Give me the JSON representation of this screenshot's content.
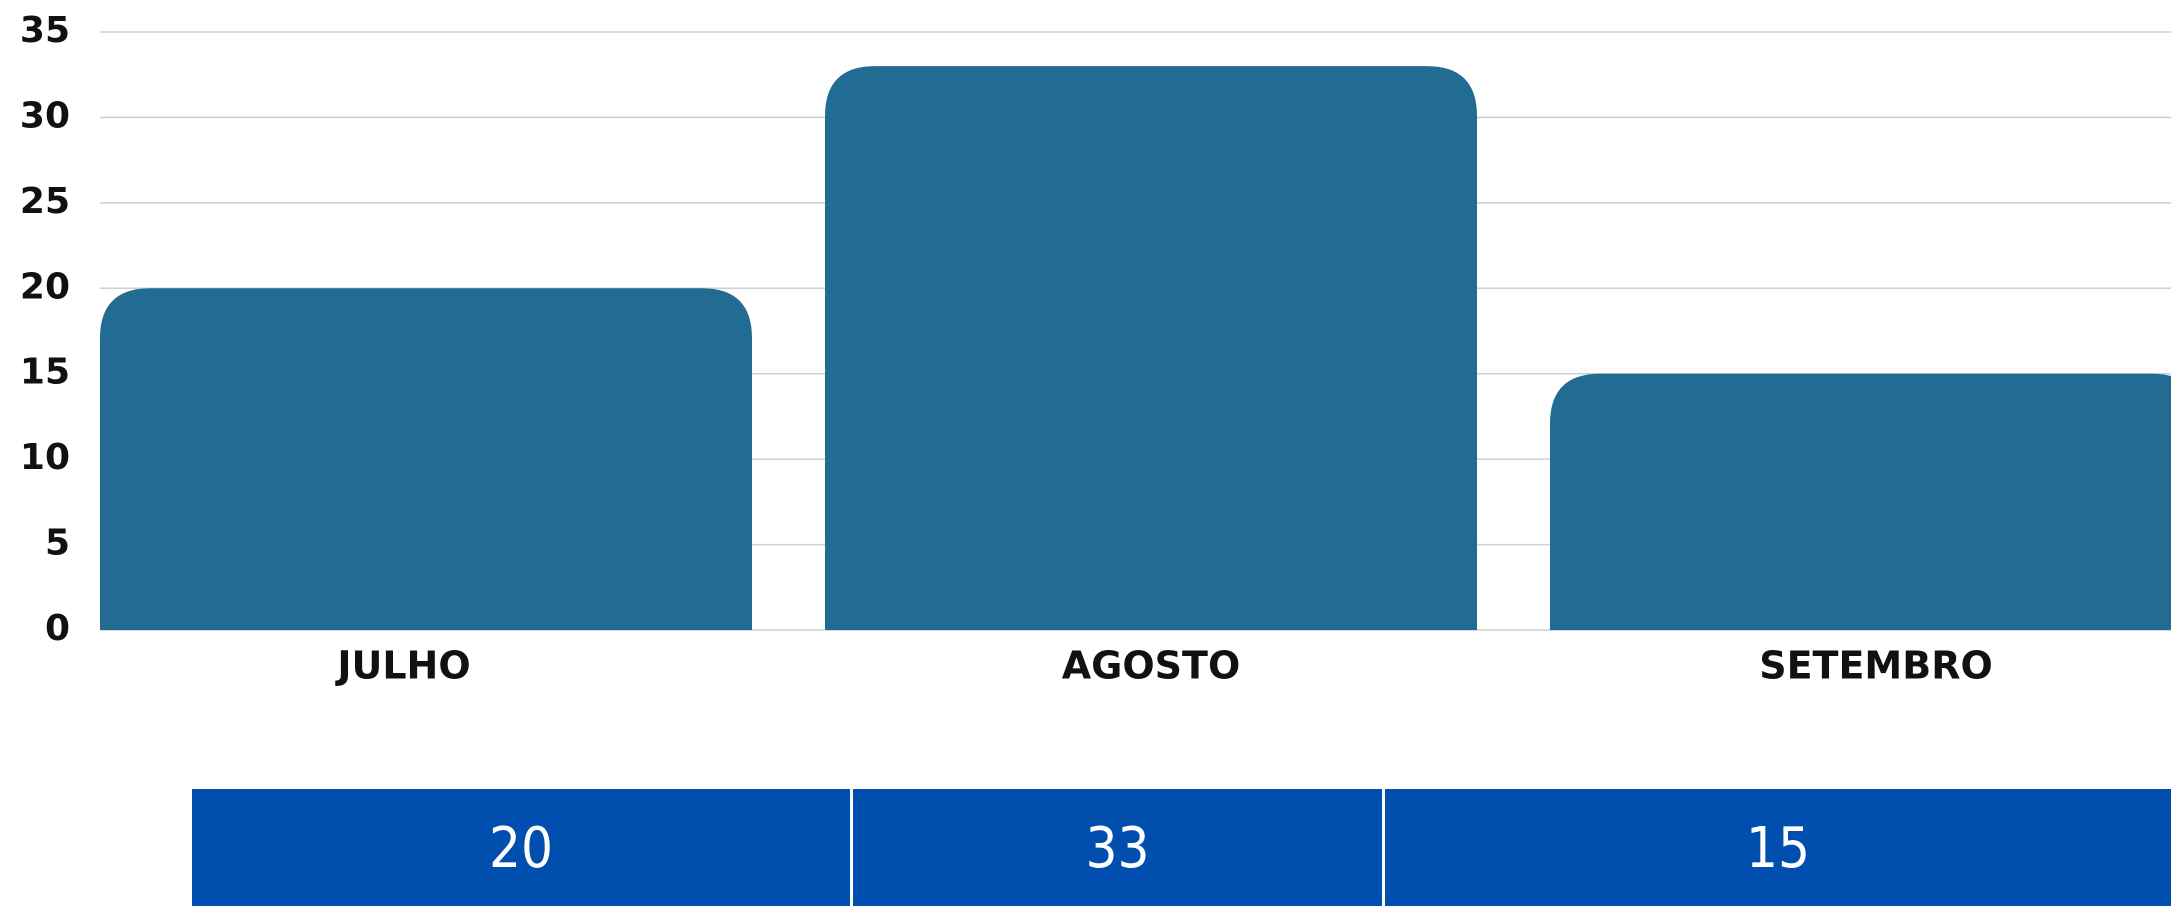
{
  "chart_data": {
    "type": "bar",
    "categories": [
      "JULHO",
      "AGOSTO",
      "SETEMBRO"
    ],
    "values": [
      20,
      33,
      15
    ],
    "color": "#226c93",
    "ylim": [
      0,
      35
    ],
    "yticks": [
      0,
      5,
      10,
      15,
      20,
      25,
      30,
      35
    ],
    "grid": true
  }
}
